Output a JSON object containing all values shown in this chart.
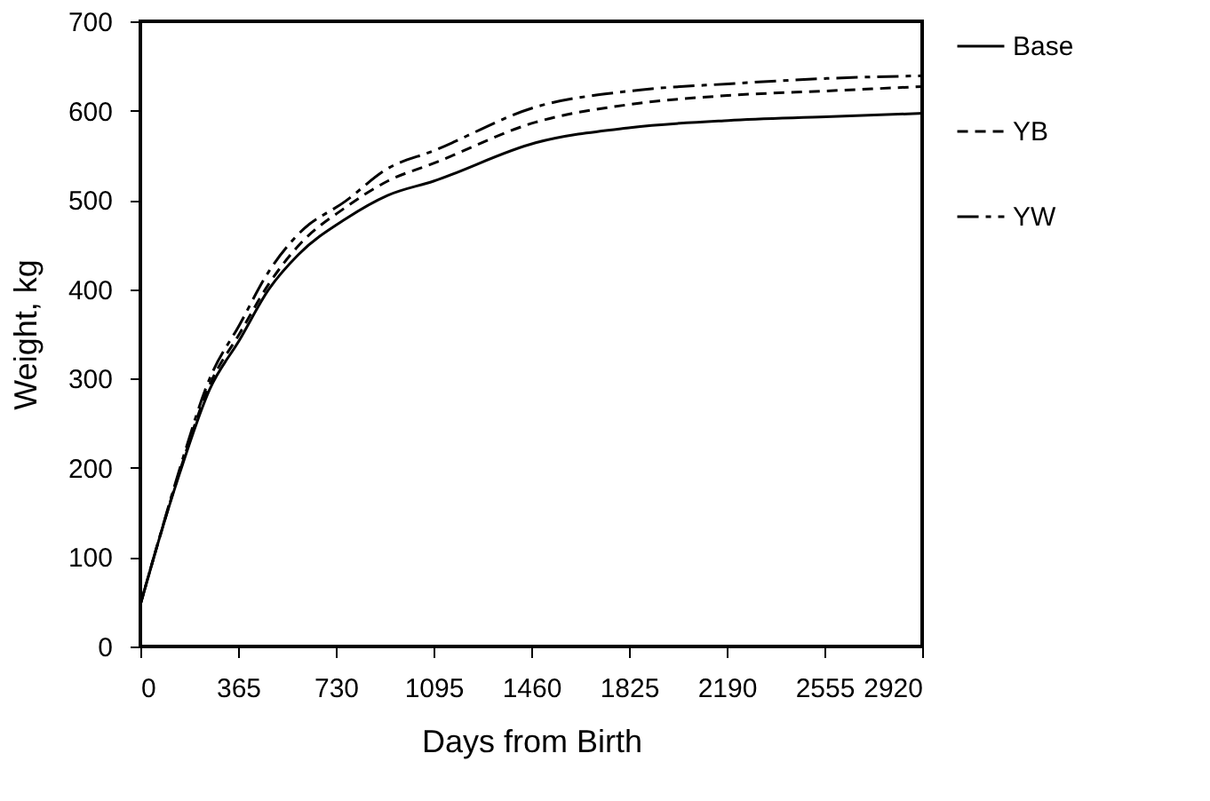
{
  "chart_data": {
    "type": "line",
    "xlabel": "Days from Birth",
    "ylabel": "Weight, kg",
    "x": [
      0,
      60,
      148,
      259,
      370,
      480,
      591,
      768,
      923,
      1095,
      1476,
      1830,
      2196,
      2561,
      2920
    ],
    "series": [
      {
        "name": "Base",
        "color": "#000000",
        "line_style": "solid",
        "values": [
          47,
          110,
          195,
          288,
          343,
          400,
          439,
          479,
          505,
          521,
          564,
          581,
          589,
          593,
          597
        ]
      },
      {
        "name": "YB",
        "color": "#000000",
        "line_style": "dashed",
        "values": [
          47,
          110,
          197,
          293,
          350,
          406,
          449,
          492,
          521,
          541,
          587,
          607,
          617,
          622,
          627
        ]
      },
      {
        "name": "YW",
        "color": "#000000",
        "line_style": "dashdot",
        "values": [
          47,
          110,
          200,
          300,
          360,
          420,
          462,
          499,
          535,
          555,
          604,
          622,
          630,
          636,
          639
        ]
      }
    ],
    "xlim": [
      0,
      2920
    ],
    "xticks": [
      0,
      365,
      730,
      1095,
      1460,
      1825,
      2190,
      2555,
      2920
    ],
    "ylim": [
      0,
      700
    ],
    "yticks": [
      0,
      100,
      200,
      300,
      400,
      500,
      600,
      700
    ],
    "grid": false,
    "legend": "right",
    "marker": "none"
  }
}
